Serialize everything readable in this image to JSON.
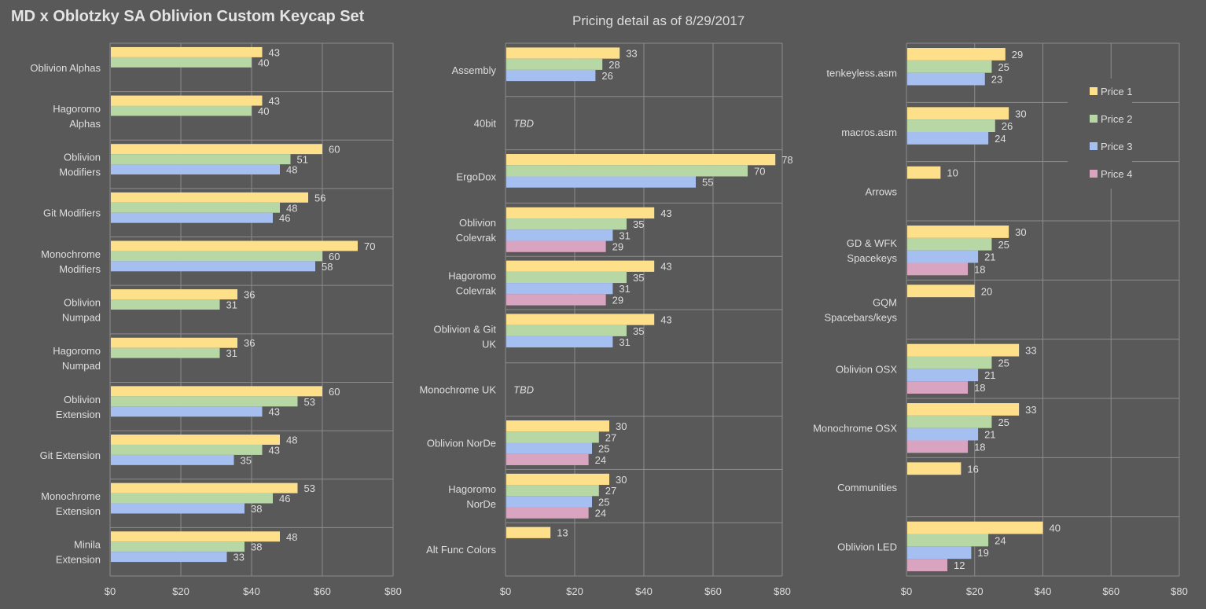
{
  "title": "MD x Oblotzky SA Oblivion Custom Keycap Set",
  "subtitle": "Pricing detail as of 8/29/2017",
  "chart_data": {
    "type": "bar",
    "orientation": "horizontal",
    "series_names": [
      "Price 1",
      "Price 2",
      "Price 3",
      "Price 4"
    ],
    "series_colors": [
      "#ffe08a",
      "#b7d7a4",
      "#a5bff0",
      "#d9a4c0"
    ],
    "xlim": [
      0,
      80
    ],
    "x_ticks": [
      "$0",
      "$20",
      "$40",
      "$60",
      "$80"
    ],
    "legend_position": "right",
    "panels": [
      {
        "categories": [
          {
            "label": "Oblivion Alphas",
            "values": [
              43,
              40,
              null,
              null
            ]
          },
          {
            "label": "Hagoromo\nAlphas",
            "values": [
              43,
              40,
              null,
              null
            ]
          },
          {
            "label": "Oblivion\nModifiers",
            "values": [
              60,
              51,
              48,
              null
            ]
          },
          {
            "label": "Git Modifiers",
            "values": [
              56,
              48,
              46,
              null
            ]
          },
          {
            "label": "Monochrome\nModifiers",
            "values": [
              70,
              60,
              58,
              null
            ]
          },
          {
            "label": "Oblivion\nNumpad",
            "values": [
              36,
              31,
              null,
              null
            ]
          },
          {
            "label": "Hagoromo\nNumpad",
            "values": [
              36,
              31,
              null,
              null
            ]
          },
          {
            "label": "Oblivion\nExtension",
            "values": [
              60,
              53,
              43,
              null
            ]
          },
          {
            "label": "Git Extension",
            "values": [
              48,
              43,
              35,
              null
            ]
          },
          {
            "label": "Monochrome\nExtension",
            "values": [
              53,
              46,
              38,
              null
            ]
          },
          {
            "label": "Minila\nExtension",
            "values": [
              48,
              38,
              33,
              null
            ]
          }
        ]
      },
      {
        "categories": [
          {
            "label": "Assembly",
            "values": [
              33,
              28,
              26,
              null
            ]
          },
          {
            "label": "40bit",
            "values": [
              null,
              null,
              null,
              null
            ],
            "note": "TBD"
          },
          {
            "label": "ErgoDox",
            "values": [
              78,
              70,
              55,
              null
            ]
          },
          {
            "label": "Oblivion\nColevrak",
            "values": [
              43,
              35,
              31,
              29
            ]
          },
          {
            "label": "Hagoromo\nColevrak",
            "values": [
              43,
              35,
              31,
              29
            ]
          },
          {
            "label": "Oblivion & Git\nUK",
            "values": [
              43,
              35,
              31,
              null
            ]
          },
          {
            "label": "Monochrome UK",
            "values": [
              null,
              null,
              null,
              null
            ],
            "note": "TBD"
          },
          {
            "label": "Oblivion NorDe",
            "values": [
              30,
              27,
              25,
              24
            ]
          },
          {
            "label": "Hagoromo\nNorDe",
            "values": [
              30,
              27,
              25,
              24
            ]
          },
          {
            "label": "Alt Func Colors",
            "values": [
              13,
              null,
              null,
              null
            ]
          }
        ]
      },
      {
        "categories": [
          {
            "label": "tenkeyless.asm",
            "values": [
              29,
              25,
              23,
              null
            ]
          },
          {
            "label": "macros.asm",
            "values": [
              30,
              26,
              24,
              null
            ]
          },
          {
            "label": "Arrows",
            "values": [
              10,
              null,
              null,
              null
            ]
          },
          {
            "label": "GD & WFK\nSpacekeys",
            "values": [
              30,
              25,
              21,
              18
            ]
          },
          {
            "label": "GQM\nSpacebars/keys",
            "values": [
              20,
              null,
              null,
              null
            ]
          },
          {
            "label": "Oblivion OSX",
            "values": [
              33,
              25,
              21,
              18
            ]
          },
          {
            "label": "Monochrome OSX",
            "values": [
              33,
              25,
              21,
              18
            ]
          },
          {
            "label": "Communities",
            "values": [
              16,
              null,
              null,
              null
            ]
          },
          {
            "label": "Oblivion LED",
            "values": [
              40,
              24,
              19,
              12
            ]
          }
        ]
      }
    ]
  }
}
